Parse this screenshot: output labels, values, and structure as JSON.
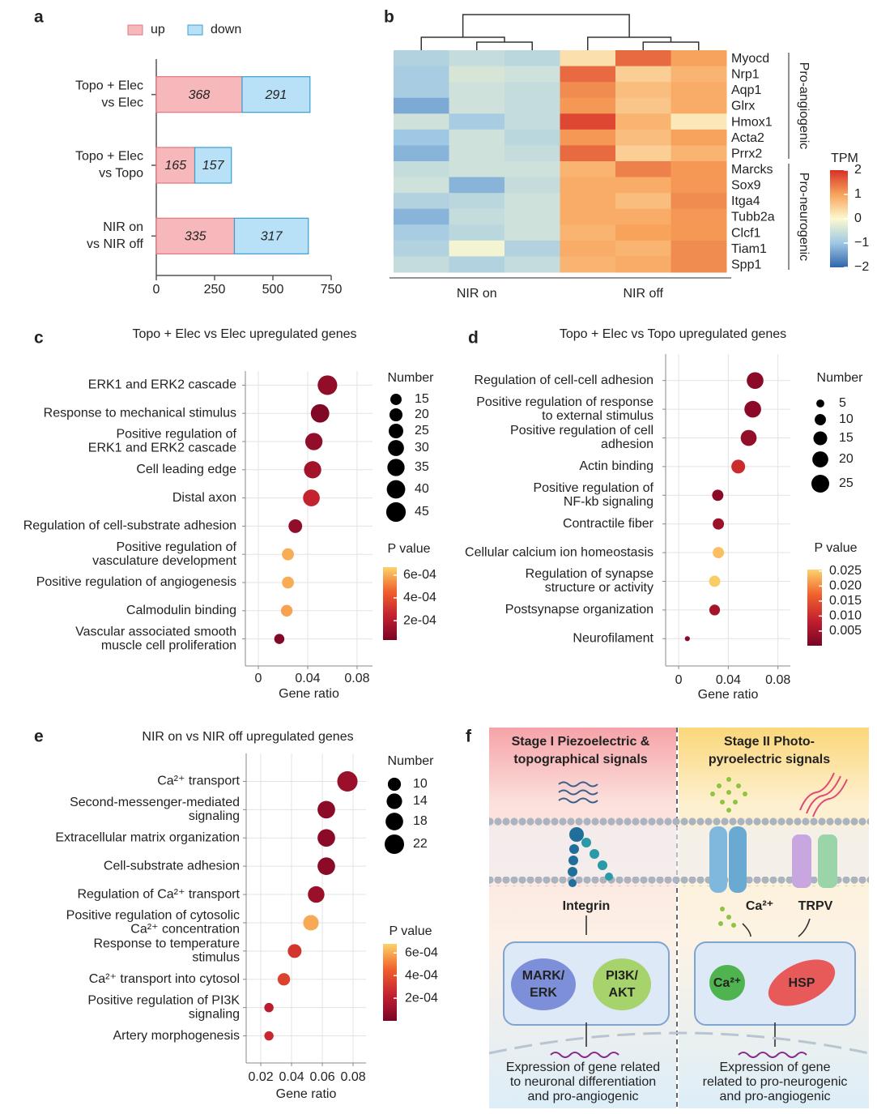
{
  "chart_data": [
    {
      "panel": "a",
      "type": "stacked_bar_h",
      "categories": [
        [
          "Topo + Elec",
          "vs Elec"
        ],
        [
          "Topo + Elec",
          "vs Topo"
        ],
        [
          "NIR on",
          "vs NIR off"
        ]
      ],
      "series": [
        {
          "name": "up",
          "color": "#f6b8bb",
          "values": [
            368,
            165,
            335
          ]
        },
        {
          "name": "down",
          "color": "#b8e1f7",
          "values": [
            291,
            157,
            317
          ]
        }
      ],
      "xlim": [
        0,
        750
      ],
      "xticks": [
        0,
        250,
        500,
        750
      ]
    },
    {
      "panel": "b",
      "type": "heatmap",
      "column_groups": [
        "NIR on",
        "NIR off"
      ],
      "row_groups": [
        {
          "name": "Pro-angiogenic",
          "genes": [
            "Myocd",
            "Nrp1",
            "Aqp1",
            "Glrx",
            "Hmox1",
            "Acta2",
            "Prrx2"
          ],
          "values": [
            [
              -0.8,
              -0.6,
              -0.7,
              0.3,
              1.5,
              1.0
            ],
            [
              -0.9,
              -0.4,
              -0.5,
              1.5,
              0.5,
              0.8
            ],
            [
              -0.9,
              -0.5,
              -0.6,
              1.2,
              0.7,
              0.9
            ],
            [
              -1.3,
              -0.5,
              -0.6,
              1.1,
              0.6,
              0.9
            ],
            [
              -0.5,
              -0.9,
              -0.6,
              1.8,
              0.8,
              0.2
            ],
            [
              -1.0,
              -0.5,
              -0.7,
              1.1,
              0.7,
              1.0
            ],
            [
              -1.2,
              -0.5,
              -0.6,
              1.5,
              0.5,
              0.8
            ]
          ]
        },
        {
          "name": "Pro-neurogenic",
          "genes": [
            "Marcks",
            "Sox9",
            "Itga4",
            "Tubb2a",
            "Clcf1",
            "Tiam1",
            "Spp1"
          ],
          "values": [
            [
              -0.6,
              -0.5,
              -0.5,
              0.8,
              1.3,
              1.1
            ],
            [
              -0.5,
              -1.2,
              -0.6,
              0.9,
              0.9,
              1.1
            ],
            [
              -0.8,
              -0.7,
              -0.5,
              0.9,
              0.7,
              1.2
            ],
            [
              -1.2,
              -0.6,
              -0.5,
              0.9,
              0.9,
              1.1
            ],
            [
              -0.9,
              -0.7,
              -0.5,
              0.8,
              1.0,
              1.1
            ],
            [
              -0.8,
              -0.1,
              -0.8,
              0.9,
              0.8,
              1.2
            ],
            [
              -0.6,
              -0.8,
              -0.6,
              0.8,
              0.9,
              1.2
            ]
          ]
        }
      ],
      "legend_title": "TPM",
      "clim": [
        -2,
        2
      ],
      "cticks": [
        {
          "value": -2,
          "label": "−2"
        },
        {
          "value": -1,
          "label": "−1"
        },
        0,
        1,
        2
      ],
      "colors": [
        "#2f65ad",
        "#9fc8e4",
        "#fcf9cf",
        "#f8a35b",
        "#d73027"
      ]
    },
    {
      "panel": "c",
      "type": "dot",
      "title": "Topo + Elec vs Elec upregulated genes",
      "categories": [
        [
          "ERK1 and ERK2 cascade"
        ],
        [
          "Response to mechanical stimulus"
        ],
        [
          "Positive regulation of",
          "ERK1 and ERK2 cascade"
        ],
        [
          "Cell leading edge"
        ],
        [
          "Distal axon"
        ],
        [
          "Regulation of cell-substrate adhesion"
        ],
        [
          "Positive regulation of",
          "vasculature development"
        ],
        [
          "Positive regulation of angiogenesis"
        ],
        [
          "Calmodulin binding"
        ],
        [
          "Vascular associated smooth",
          "muscle cell proliferation"
        ]
      ],
      "x": [
        0.056,
        0.05,
        0.045,
        0.044,
        0.043,
        0.03,
        0.024,
        0.024,
        0.023,
        0.017
      ],
      "sizes": [
        45,
        40,
        35,
        35,
        33,
        22,
        17,
        17,
        16,
        12
      ],
      "pvalues": [
        0.0001,
        5e-05,
        0.0001,
        0.00015,
        0.00025,
        0.0001,
        0.0006,
        0.0006,
        0.00058,
        5e-05
      ],
      "xlim": [
        -0.0105,
        0.0925
      ],
      "xticks": [
        0,
        0.04,
        0.08
      ],
      "xlabel": "Gene ratio",
      "grid": true,
      "size_legend": {
        "title": "Number",
        "values": [
          15,
          20,
          25,
          30,
          35,
          40,
          45
        ]
      },
      "color_legend": {
        "title": "P value",
        "lim": [
          3e-05,
          0.00067
        ],
        "ticks": [
          {
            "value": 0.0006,
            "label": "6e-04"
          },
          {
            "value": 0.0004,
            "label": "4e-04"
          },
          {
            "value": 0.0002,
            "label": "2e-04"
          }
        ],
        "colors": [
          "#7a0426",
          "#c3202f",
          "#f0602c",
          "#fbd36b"
        ]
      }
    },
    {
      "panel": "d",
      "type": "dot",
      "title": "Topo + Elec vs Topo upregulated genes",
      "categories": [
        [
          "Regulation of cell-cell adhesion"
        ],
        [
          "Positive regulation of response",
          "to external stimulus"
        ],
        [
          "Positive regulation of cell",
          "adhesion"
        ],
        [
          "Actin binding"
        ],
        [
          "Positive regulation of",
          "NF-kb signaling"
        ],
        [
          "Contractile fiber"
        ],
        [
          "Cellular calcium ion homeostasis"
        ],
        [
          "Regulation of synapse",
          "structure or activity"
        ],
        [
          "Postsynapse organization"
        ],
        [
          "Neurofilament"
        ]
      ],
      "x": [
        0.0616,
        0.0597,
        0.0564,
        0.048,
        0.0315,
        0.032,
        0.032,
        0.029,
        0.029,
        0.007
      ],
      "sizes": [
        22,
        22,
        20,
        15,
        10,
        10,
        10,
        10,
        9,
        2
      ],
      "pvalues": [
        0.002,
        0.002,
        0.003,
        0.01,
        0.002,
        0.004,
        0.024,
        0.025,
        0.005,
        0.002
      ],
      "xlim": [
        -0.0105,
        0.09
      ],
      "xticks": [
        0,
        0.04,
        0.08
      ],
      "xlabel": "Gene ratio",
      "grid": true,
      "size_legend": {
        "title": "Number",
        "values": [
          5,
          10,
          15,
          20,
          25
        ]
      },
      "color_legend": {
        "title": "P value",
        "lim": [
          0.0001,
          0.0255
        ],
        "ticks": [
          0.025,
          {
            "value": 0.02,
            "label": "0.020"
          },
          0.015,
          {
            "value": 0.01,
            "label": "0.010"
          },
          0.005
        ],
        "colors": [
          "#7a0426",
          "#c3202f",
          "#f0602c",
          "#fbd36b"
        ]
      }
    },
    {
      "panel": "e",
      "type": "dot",
      "title": "NIR on vs NIR off upregulated genes",
      "categories": [
        [
          "Ca²⁺ transport"
        ],
        [
          "Second-messenger-mediated",
          "signaling"
        ],
        [
          "Extracellular matrix organization"
        ],
        [
          "Cell-substrate adhesion"
        ],
        [
          "Regulation of Ca²⁺ transport"
        ],
        [
          "Positive regulation of cytosolic",
          "Ca²⁺ concentration"
        ],
        [
          "Response to temperature",
          "stimulus"
        ],
        [
          "Ca²⁺ transport into cytosol"
        ],
        [
          "Positive regulation of PI3K",
          "signaling"
        ],
        [
          "Artery morphogenesis"
        ]
      ],
      "x": [
        0.0763,
        0.0626,
        0.0626,
        0.0626,
        0.056,
        0.0526,
        0.042,
        0.035,
        0.0253,
        0.0253
      ],
      "sizes": [
        24,
        18,
        18,
        18,
        16,
        14,
        11,
        9,
        5,
        5
      ],
      "pvalues": [
        0.0001,
        5e-05,
        5e-05,
        5e-05,
        0.0001,
        0.0006,
        0.0003,
        0.00035,
        0.0002,
        0.00025
      ],
      "xlim": [
        0.0105,
        0.0884
      ],
      "xticks": [
        0.02,
        0.04,
        0.06,
        0.08
      ],
      "xlabel": "Gene ratio",
      "grid": true,
      "size_legend": {
        "title": "Number",
        "values": [
          10,
          14,
          18,
          22
        ]
      },
      "color_legend": {
        "title": "P value",
        "lim": [
          0,
          0.00068
        ],
        "ticks": [
          {
            "value": 0.0006,
            "label": "6e-04"
          },
          {
            "value": 0.0004,
            "label": "4e-04"
          },
          {
            "value": 0.0002,
            "label": "2e-04"
          }
        ],
        "colors": [
          "#7a0426",
          "#c3202f",
          "#f0602c",
          "#fbd36b"
        ]
      }
    }
  ],
  "panel_f": {
    "panel": "f",
    "stage_1": [
      "Stage I Piezoelectric &",
      "topographical signals"
    ],
    "stage_2": [
      "Stage II Photo-",
      "pyroelectric signals"
    ],
    "integrin": "Integrin",
    "ca_channel": "Ca²⁺",
    "trpv": "TRPV",
    "mark_erk": [
      "MARK/",
      "ERK"
    ],
    "pi3k_akt": [
      "PI3K/",
      "AKT"
    ],
    "ca_ion": "Ca²⁺",
    "hsp": "HSP",
    "expression_1": [
      "Expression of gene related",
      "to neuronal differentiation",
      "and pro-angiogenic"
    ],
    "expression_2": [
      "Expression of gene",
      "related to pro-neurogenic",
      "and pro-angiogenic"
    ]
  }
}
